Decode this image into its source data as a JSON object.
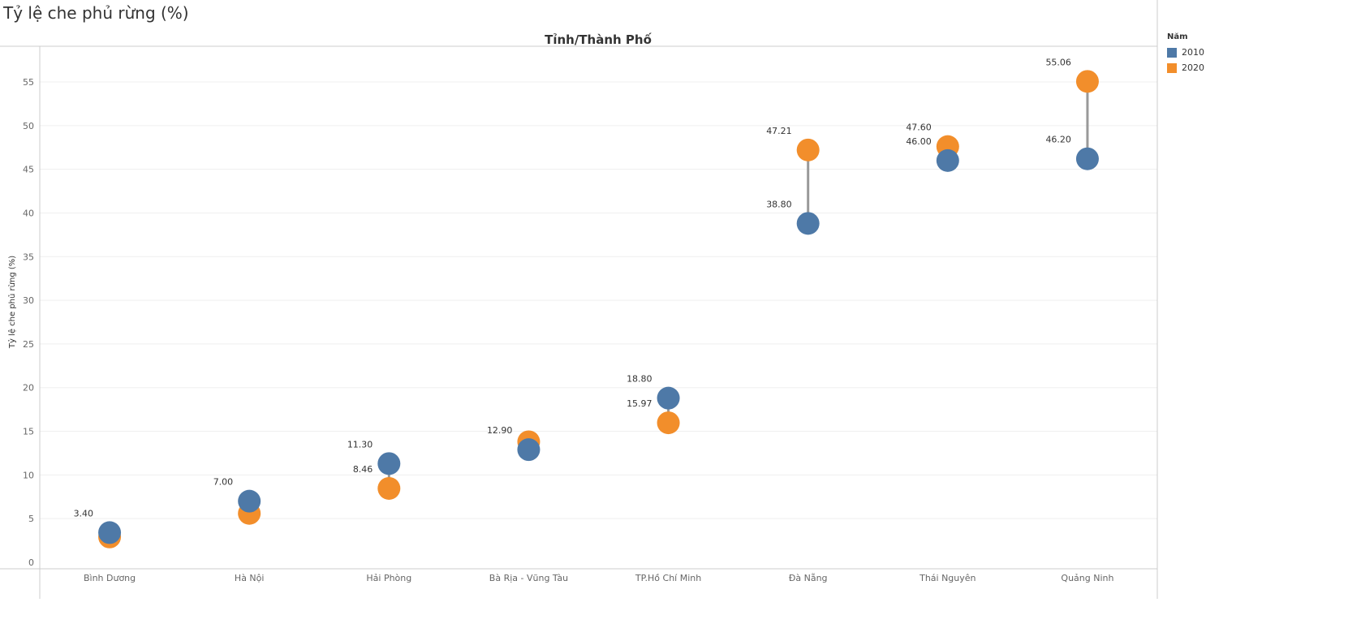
{
  "page": {
    "title": "Tỷ lệ che phủ rừng (%)"
  },
  "legend": {
    "title": "Năm",
    "items": [
      {
        "label": "2010",
        "color": "#4e79a7"
      },
      {
        "label": "2020",
        "color": "#f28e2b"
      }
    ]
  },
  "chart_data": {
    "type": "scatter",
    "title": "",
    "xlabel": "Tỉnh/Thành Phố",
    "ylabel": "Tỷ lệ che phủ rừng (%)",
    "ylim": [
      0,
      58
    ],
    "yticks": [
      0,
      5,
      10,
      15,
      20,
      25,
      30,
      35,
      40,
      45,
      50,
      55
    ],
    "grid": true,
    "legend_position": "right",
    "categories": [
      "Bình Dương",
      "Hà Nội",
      "Hải Phòng",
      "Bà Rịa - Vũng Tàu",
      "TP.Hồ Chí Minh",
      "Đà Nẵng",
      "Thái Nguyên",
      "Quảng Ninh"
    ],
    "series": [
      {
        "name": "2010",
        "color": "#4e79a7",
        "values": [
          3.4,
          7.0,
          11.3,
          12.9,
          18.8,
          38.8,
          46.0,
          46.2
        ]
      },
      {
        "name": "2020",
        "color": "#f28e2b",
        "values": [
          2.9,
          5.6,
          8.46,
          13.8,
          15.97,
          47.21,
          47.6,
          55.06
        ]
      }
    ],
    "data_labels": [
      {
        "category": "Bình Dương",
        "series": "2010",
        "text": "3.40"
      },
      {
        "category": "Hà Nội",
        "series": "2010",
        "text": "7.00"
      },
      {
        "category": "Hải Phòng",
        "series": "2010",
        "text": "11.30"
      },
      {
        "category": "Hải Phòng",
        "series": "2020",
        "text": "8.46"
      },
      {
        "category": "Bà Rịa - Vũng Tàu",
        "series": "2010",
        "text": "12.90"
      },
      {
        "category": "TP.Hồ Chí Minh",
        "series": "2010",
        "text": "18.80"
      },
      {
        "category": "TP.Hồ Chí Minh",
        "series": "2020",
        "text": "15.97"
      },
      {
        "category": "Đà Nẵng",
        "series": "2020",
        "text": "47.21"
      },
      {
        "category": "Đà Nẵng",
        "series": "2010",
        "text": "38.80"
      },
      {
        "category": "Thái Nguyên",
        "series": "2020",
        "text": "47.60"
      },
      {
        "category": "Thái Nguyên",
        "series": "2010",
        "text": "46.00"
      },
      {
        "category": "Quảng Ninh",
        "series": "2020",
        "text": "55.06"
      },
      {
        "category": "Quảng Ninh",
        "series": "2010",
        "text": "46.20"
      }
    ]
  }
}
